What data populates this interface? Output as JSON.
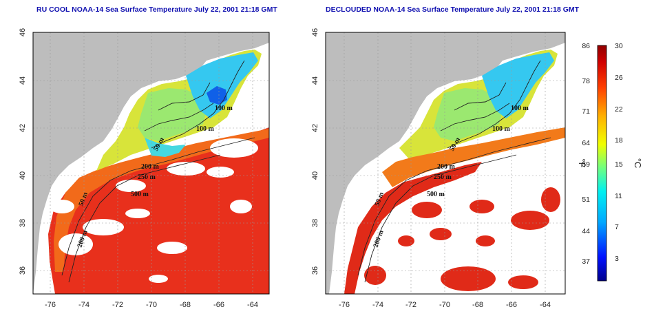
{
  "titles": {
    "left": "RU COOL NOAA-14 Sea Surface Temperature July 22, 2001 21:18 GMT",
    "right": "DECLOUDED NOAA-14 Sea Surface Temperature July 22, 2001 21:18 GMT"
  },
  "map_axes": {
    "x_ticks": [
      "-76",
      "-74",
      "-72",
      "-70",
      "-68",
      "-66",
      "-64"
    ],
    "y_ticks": [
      "46",
      "44",
      "42",
      "40",
      "38",
      "36"
    ],
    "lon_range": [
      -77,
      -63
    ],
    "lat_range": [
      35,
      46
    ]
  },
  "contour_labels": {
    "left": [
      "100 m",
      "100 m",
      "50 m",
      "250 m",
      "200 m",
      "50 m",
      "200 m",
      "500 m"
    ],
    "right": [
      "100 m",
      "100 m",
      "50 m",
      "250 m",
      "200 m",
      "50 m",
      "200 m",
      "500 m"
    ]
  },
  "colorbar": {
    "fahrenheit_ticks": [
      "86",
      "78",
      "71",
      "64",
      "59",
      "51",
      "44",
      "37"
    ],
    "celsius_ticks": [
      "30",
      "26",
      "22",
      "18",
      "15",
      "11",
      "7",
      "3"
    ],
    "fahrenheit_unit": "°F",
    "celsius_unit": "°C",
    "range_c": [
      0,
      30
    ],
    "colors": [
      "#000080",
      "#0000ff",
      "#00a0ff",
      "#00ffff",
      "#60ff90",
      "#ffff00",
      "#ffa000",
      "#ff3000",
      "#c00000",
      "#800000"
    ]
  },
  "colors": {
    "land": "#bdbdbd",
    "cloud": "#ffffff",
    "title_text": "#1010b0"
  }
}
